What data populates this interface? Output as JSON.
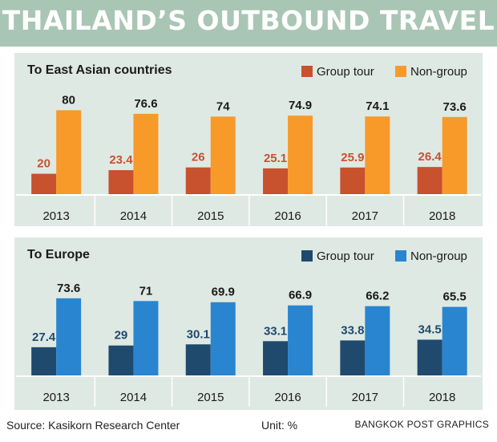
{
  "title": "THAILAND’S OUTBOUND TRAVEL",
  "footer": {
    "source": "Source: Kasikorn Research Center",
    "unit": "Unit: %",
    "credit": "BANGKOK POST GRAPHICS"
  },
  "chart_data": [
    {
      "type": "bar",
      "title": "To East Asian countries",
      "categories": [
        "2013",
        "2014",
        "2015",
        "2016",
        "2017",
        "2018"
      ],
      "series": [
        {
          "name": "Group tour",
          "color": "#c8512e",
          "values": [
            20,
            23.4,
            26,
            25.1,
            25.9,
            26.4
          ]
        },
        {
          "name": "Non-group",
          "color": "#f79a2a",
          "values": [
            80,
            76.6,
            74,
            74.9,
            74.1,
            73.6
          ]
        }
      ],
      "value_label_colors": [
        "#c8512e",
        "#1a1a1a"
      ],
      "legend": "top-right",
      "ylim": [
        0,
        100
      ]
    },
    {
      "type": "bar",
      "title": "To Europe",
      "categories": [
        "2013",
        "2014",
        "2015",
        "2016",
        "2017",
        "2018"
      ],
      "series": [
        {
          "name": "Group tour",
          "color": "#1f4a6e",
          "values": [
            27.4,
            29,
            30.1,
            33.1,
            33.8,
            34.5
          ]
        },
        {
          "name": "Non-group",
          "color": "#2a85d0",
          "values": [
            73.6,
            71,
            69.9,
            66.9,
            66.2,
            65.5
          ]
        }
      ],
      "value_label_colors": [
        "#1f4a6e",
        "#1a1a1a"
      ],
      "legend": "top-right",
      "ylim": [
        0,
        100
      ]
    }
  ]
}
